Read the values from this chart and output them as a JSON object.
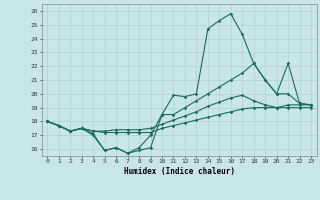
{
  "title": "",
  "xlabel": "Humidex (Indice chaleur)",
  "xlim": [
    -0.5,
    23.5
  ],
  "ylim": [
    15.5,
    26.5
  ],
  "yticks": [
    16,
    17,
    18,
    19,
    20,
    21,
    22,
    23,
    24,
    25,
    26
  ],
  "xticks": [
    0,
    1,
    2,
    3,
    4,
    5,
    6,
    7,
    8,
    9,
    10,
    11,
    12,
    13,
    14,
    15,
    16,
    17,
    18,
    19,
    20,
    21,
    22,
    23
  ],
  "background_color": "#c8e6e6",
  "grid_color": "#b0d0d0",
  "line_color": "#1a6b5a",
  "line1": [
    18.0,
    17.7,
    17.3,
    17.5,
    17.1,
    15.9,
    16.1,
    15.7,
    15.9,
    16.1,
    18.5,
    19.9,
    19.8,
    20.0,
    24.7,
    25.3,
    25.8,
    24.3,
    22.2,
    21.0,
    20.0,
    22.2,
    19.3,
    19.2
  ],
  "line2": [
    18.0,
    17.7,
    17.3,
    17.5,
    17.3,
    17.3,
    17.4,
    17.4,
    17.4,
    17.5,
    17.8,
    18.1,
    18.4,
    18.7,
    19.1,
    19.4,
    19.7,
    19.9,
    19.5,
    19.2,
    19.0,
    19.2,
    19.2,
    19.2
  ],
  "line3": [
    18.0,
    17.7,
    17.3,
    17.5,
    17.3,
    17.2,
    17.2,
    17.2,
    17.2,
    17.2,
    17.5,
    17.7,
    17.9,
    18.1,
    18.3,
    18.5,
    18.7,
    18.9,
    19.0,
    19.0,
    19.0,
    19.0,
    19.0,
    19.0
  ],
  "line4": [
    18.0,
    17.7,
    17.3,
    17.5,
    17.0,
    15.9,
    16.1,
    15.7,
    16.1,
    17.0,
    18.5,
    18.5,
    19.0,
    19.5,
    20.0,
    20.5,
    21.0,
    21.5,
    22.2,
    21.0,
    20.0,
    20.0,
    19.3,
    19.2
  ]
}
